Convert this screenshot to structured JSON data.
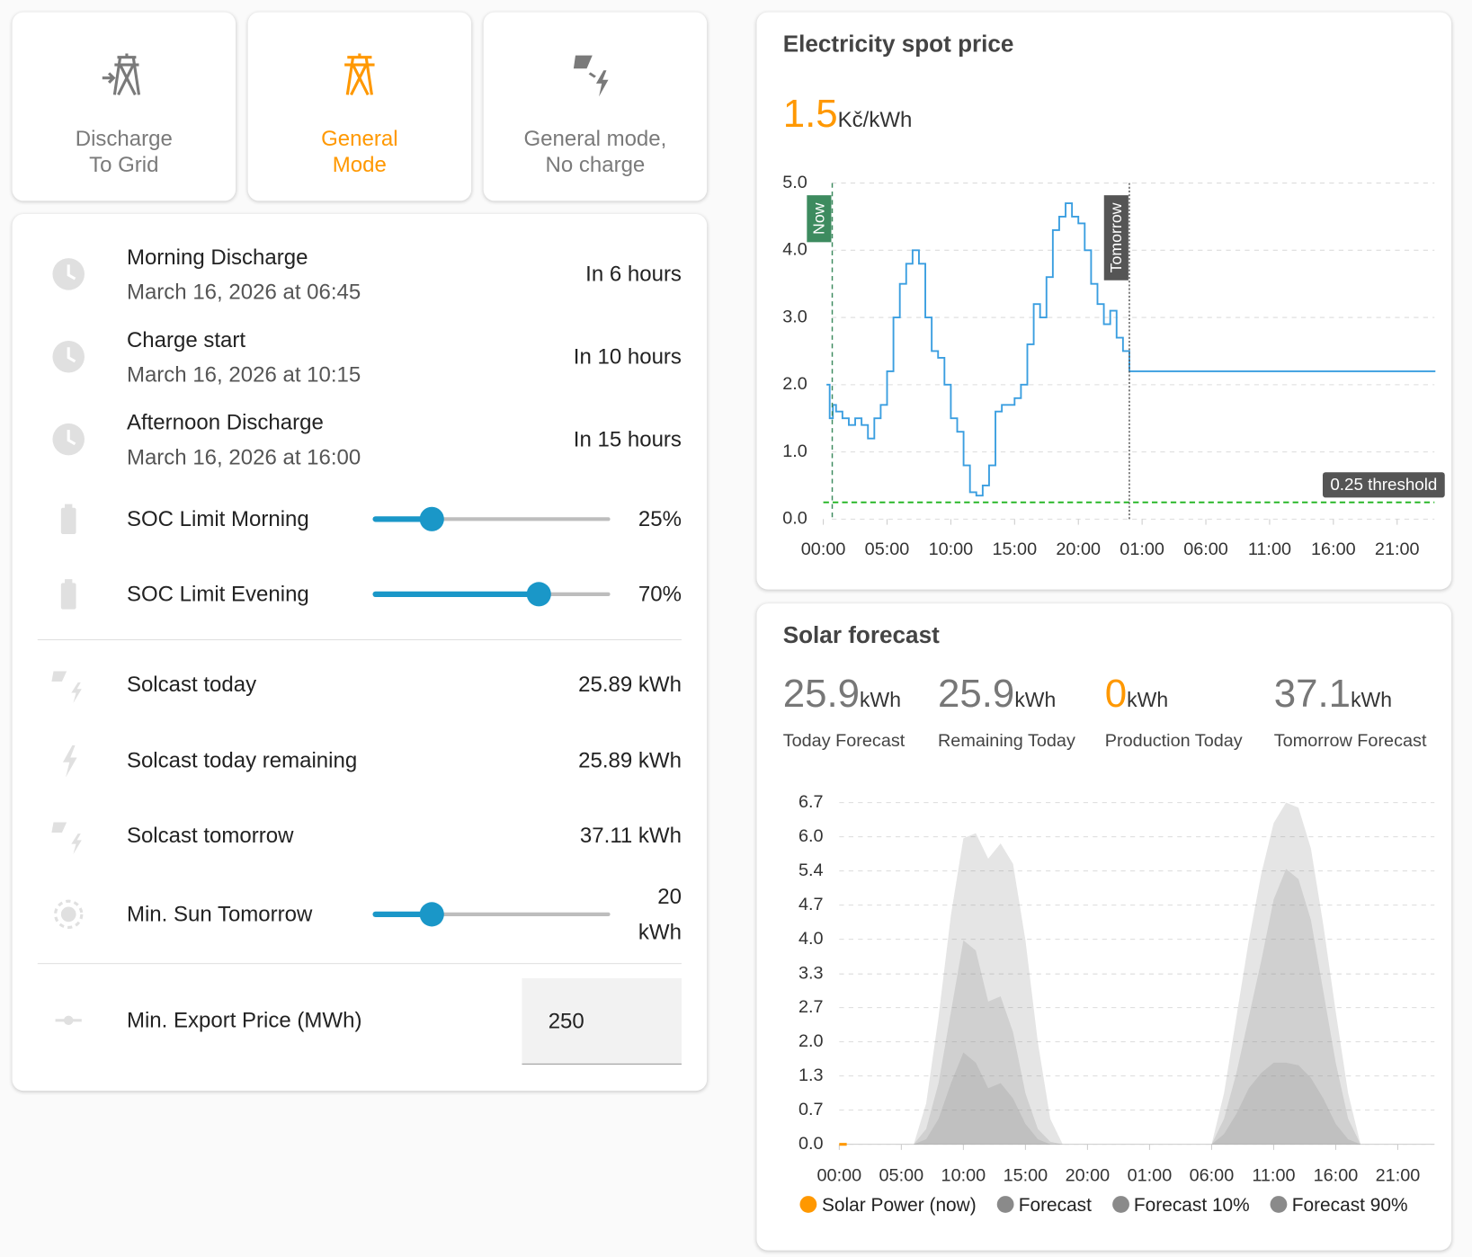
{
  "mode_buttons": [
    {
      "lines": [
        "Discharge",
        "To Grid"
      ],
      "active": false
    },
    {
      "lines": [
        "General",
        "Mode"
      ],
      "active": true
    },
    {
      "lines": [
        "General mode,",
        "No charge"
      ],
      "active": false
    }
  ],
  "schedule": [
    {
      "name": "Morning Discharge",
      "time": "March 16, 2026 at 06:45",
      "relative": "In 6 hours"
    },
    {
      "name": "Charge start",
      "time": "March 16, 2026 at 10:15",
      "relative": "In 10 hours"
    },
    {
      "name": "Afternoon Discharge",
      "time": "March 16, 2026 at 16:00",
      "relative": "In 15 hours"
    }
  ],
  "sliders": [
    {
      "name": "SOC Limit Morning",
      "value": 25,
      "value_label": "25%",
      "min": 0,
      "max": 100
    },
    {
      "name": "SOC Limit Evening",
      "value": 70,
      "value_label": "70%",
      "min": 0,
      "max": 100
    }
  ],
  "solcast": [
    {
      "name": "Solcast today",
      "value": "25.89 kWh"
    },
    {
      "name": "Solcast today remaining",
      "value": "25.89 kWh"
    },
    {
      "name": "Solcast tomorrow",
      "value": "37.11 kWh"
    }
  ],
  "min_sun": {
    "name": "Min. Sun Tomorrow",
    "value": 20,
    "unit": "kWh",
    "min": 0,
    "max": 80
  },
  "export_price": {
    "name": "Min. Export Price (MWh)",
    "value": "250"
  },
  "chart_data": [
    {
      "type": "line",
      "title": "Electricity spot price",
      "current_value": 1.5,
      "unit": "Kč/kWh",
      "color": "#3a9ee0",
      "step": "after",
      "x": [
        0.25,
        0.5,
        0.75,
        1,
        1.5,
        2,
        2.5,
        3,
        3.5,
        4,
        4.5,
        5,
        5.5,
        6,
        6.5,
        7,
        7.5,
        8,
        8.5,
        9,
        9.5,
        10,
        10.5,
        11,
        11.5,
        12,
        12.5,
        13,
        13.5,
        14,
        14.5,
        15,
        15.5,
        16,
        16.5,
        17,
        17.5,
        18,
        18.5,
        19,
        19.5,
        20,
        20.5,
        21,
        21.5,
        22,
        22.5,
        23,
        23.5,
        24,
        48
      ],
      "values": [
        2.0,
        1.5,
        1.7,
        1.6,
        1.5,
        1.4,
        1.5,
        1.4,
        1.2,
        1.5,
        1.7,
        2.2,
        3.0,
        3.5,
        3.8,
        4.0,
        3.8,
        3.0,
        2.5,
        2.4,
        2.0,
        1.5,
        1.3,
        0.8,
        0.4,
        0.35,
        0.5,
        0.8,
        1.6,
        1.7,
        1.7,
        1.8,
        2.0,
        2.6,
        3.2,
        3.0,
        3.6,
        4.3,
        4.5,
        4.7,
        4.5,
        4.4,
        4.0,
        3.5,
        3.2,
        2.9,
        3.1,
        2.7,
        2.5,
        2.2,
        2.2
      ],
      "xlim": [
        0,
        48
      ],
      "xticks": [
        {
          "value": 0,
          "label": "00:00"
        },
        {
          "value": 5,
          "label": "05:00"
        },
        {
          "value": 10,
          "label": "10:00"
        },
        {
          "value": 15,
          "label": "15:00"
        },
        {
          "value": 20,
          "label": "20:00"
        },
        {
          "value": 25,
          "label": "01:00"
        },
        {
          "value": 30,
          "label": "06:00"
        },
        {
          "value": 35,
          "label": "11:00"
        },
        {
          "value": 40,
          "label": "16:00"
        },
        {
          "value": 45,
          "label": "21:00"
        }
      ],
      "ylim": [
        0,
        5
      ],
      "yticks": [
        {
          "value": 0,
          "label": "0.0"
        },
        {
          "value": 1,
          "label": "1.0"
        },
        {
          "value": 2,
          "label": "2.0"
        },
        {
          "value": 3,
          "label": "3.0"
        },
        {
          "value": 4,
          "label": "4.0"
        },
        {
          "value": 5,
          "label": "5.0"
        }
      ],
      "grid": true,
      "markers": [
        {
          "label": "Now",
          "x": 0.7,
          "color": "#3d8b5f"
        },
        {
          "label": "Tomorrow",
          "x": 24,
          "color": "#555555"
        }
      ],
      "threshold": {
        "label": "0.25 threshold",
        "value": 0.25,
        "color": "#1db31d"
      }
    },
    {
      "type": "area",
      "title": "Solar forecast",
      "stats": [
        {
          "value": 25.9,
          "unit": "kWh",
          "label": "Today Forecast",
          "color": "#777777"
        },
        {
          "value": 25.9,
          "unit": "kWh",
          "label": "Remaining Today",
          "color": "#777777"
        },
        {
          "value": 0,
          "unit": "kWh",
          "label": "Production Today",
          "color": "#ff9800"
        },
        {
          "value": 37.1,
          "unit": "kWh",
          "label": "Tomorrow Forecast",
          "color": "#777777"
        }
      ],
      "x": [
        0,
        1,
        2,
        3,
        4,
        5,
        6,
        7,
        8,
        9,
        10,
        11,
        12,
        13,
        14,
        15,
        16,
        17,
        18,
        19,
        20,
        21,
        22,
        23,
        24,
        25,
        26,
        27,
        28,
        29,
        30,
        31,
        32,
        33,
        34,
        35,
        36,
        37,
        38,
        39,
        40,
        41,
        42,
        43,
        44,
        45,
        46,
        47,
        48
      ],
      "series": [
        {
          "name": "Solar Power (now)",
          "color": "#ff9800",
          "x": [
            0,
            0.6
          ],
          "values": [
            0,
            0
          ]
        },
        {
          "name": "Forecast",
          "color": "#8a8a8a",
          "values": [
            0,
            0,
            0,
            0,
            0,
            0,
            0,
            0.3,
            1.2,
            2.6,
            4.0,
            3.8,
            2.8,
            2.9,
            2.2,
            1.0,
            0.3,
            0.05,
            0,
            0,
            0,
            0,
            0,
            0,
            0,
            0,
            0,
            0,
            0,
            0,
            0,
            0.5,
            1.4,
            2.5,
            3.6,
            4.8,
            5.4,
            5.2,
            4.4,
            3.0,
            1.6,
            0.5,
            0,
            0,
            0,
            0,
            0,
            0,
            0
          ]
        },
        {
          "name": "Forecast 10%",
          "color": "#8a8a8a",
          "values": [
            0,
            0,
            0,
            0,
            0,
            0,
            0,
            0.1,
            0.5,
            1.2,
            1.8,
            1.6,
            1.1,
            1.2,
            0.9,
            0.4,
            0.1,
            0,
            0,
            0,
            0,
            0,
            0,
            0,
            0,
            0,
            0,
            0,
            0,
            0,
            0,
            0.2,
            0.6,
            1.1,
            1.4,
            1.6,
            1.6,
            1.55,
            1.3,
            0.9,
            0.4,
            0.1,
            0,
            0,
            0,
            0,
            0,
            0,
            0
          ]
        },
        {
          "name": "Forecast 90%",
          "color": "#8a8a8a",
          "values": [
            0,
            0,
            0,
            0,
            0,
            0,
            0,
            0.8,
            2.5,
            4.5,
            6.0,
            6.1,
            5.6,
            5.9,
            5.5,
            4.0,
            2.0,
            0.5,
            0,
            0,
            0,
            0,
            0,
            0,
            0,
            0,
            0,
            0,
            0,
            0,
            0,
            1.0,
            2.5,
            4.0,
            5.3,
            6.3,
            6.7,
            6.6,
            5.8,
            4.3,
            2.6,
            1.0,
            0,
            0,
            0,
            0,
            0,
            0,
            0
          ]
        }
      ],
      "fill_opacity": 0.22,
      "xlim": [
        0,
        48
      ],
      "xticks": [
        {
          "value": 0,
          "label": "00:00"
        },
        {
          "value": 5,
          "label": "05:00"
        },
        {
          "value": 10,
          "label": "10:00"
        },
        {
          "value": 15,
          "label": "15:00"
        },
        {
          "value": 20,
          "label": "20:00"
        },
        {
          "value": 25,
          "label": "01:00"
        },
        {
          "value": 30,
          "label": "06:00"
        },
        {
          "value": 35,
          "label": "11:00"
        },
        {
          "value": 40,
          "label": "16:00"
        },
        {
          "value": 45,
          "label": "21:00"
        }
      ],
      "ylim": [
        0,
        6.7
      ],
      "yticks": [
        {
          "value": 0,
          "label": "0.0"
        },
        {
          "value": 0.67,
          "label": "0.7"
        },
        {
          "value": 1.34,
          "label": "1.3"
        },
        {
          "value": 2.01,
          "label": "2.0"
        },
        {
          "value": 2.68,
          "label": "2.7"
        },
        {
          "value": 3.34,
          "label": "3.3"
        },
        {
          "value": 4.02,
          "label": "4.0"
        },
        {
          "value": 4.69,
          "label": "4.7"
        },
        {
          "value": 5.36,
          "label": "5.4"
        },
        {
          "value": 6.03,
          "label": "6.0"
        },
        {
          "value": 6.7,
          "label": "6.7"
        }
      ],
      "grid": true
    }
  ]
}
